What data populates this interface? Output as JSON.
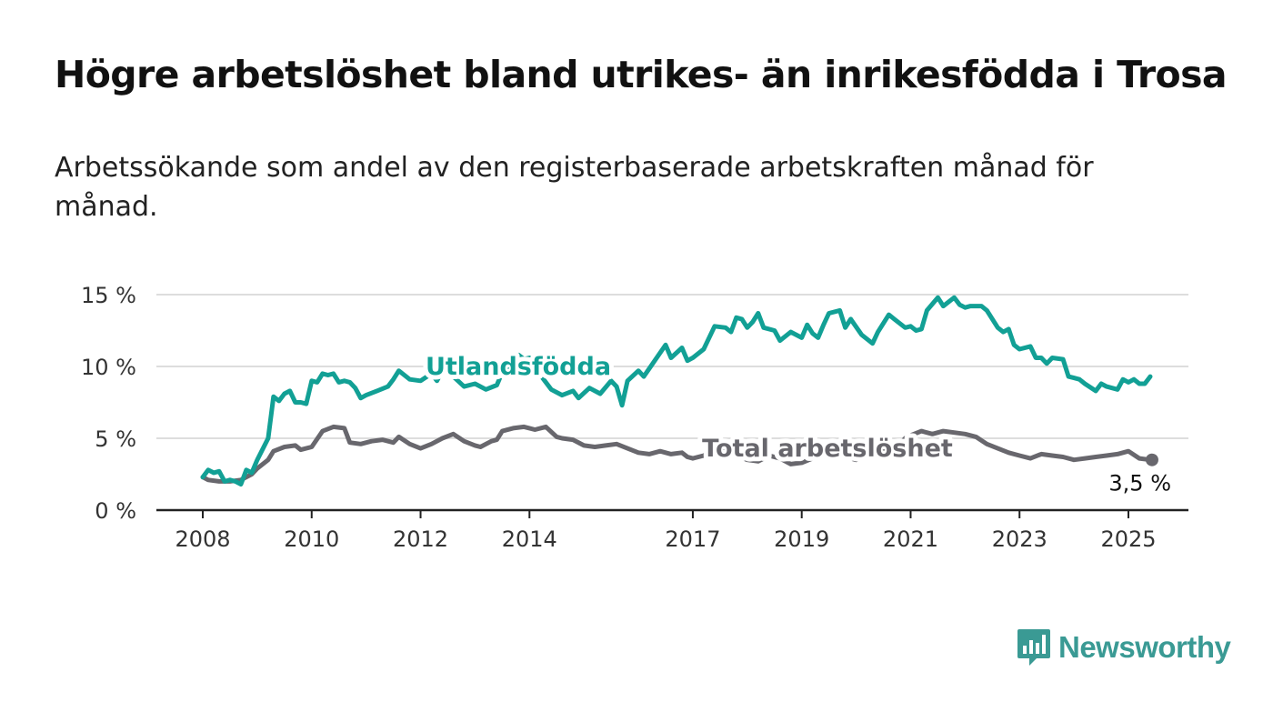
{
  "colors": {
    "foreign": "#12a095",
    "total": "#68676d",
    "grid": "#dddddd",
    "axis": "#222222",
    "brand": "#3a9a94"
  },
  "brand": {
    "name": "Newsworthy",
    "icon": "bar-chart-speech-bubble-icon"
  },
  "chart_data": {
    "type": "line",
    "title": "Högre arbetslöshet bland utrikes- än inrikesfödda i Trosa",
    "subtitle": "Arbetssökande som andel av den registerbaserade arbetskraften månad för månad.",
    "xlabel": "",
    "ylabel": "",
    "xlim": [
      2008,
      2025.4
    ],
    "ylim": [
      0,
      15
    ],
    "grid": true,
    "x_ticks": [
      2008,
      2010,
      2012,
      2014,
      2017,
      2019,
      2021,
      2023,
      2025
    ],
    "x_tick_labels": [
      "2008",
      "2010",
      "2012",
      "2014",
      "2017",
      "2019",
      "2021",
      "2023",
      "2025"
    ],
    "y_ticks": [
      0,
      5,
      10,
      15
    ],
    "y_tick_labels": [
      "0 %",
      "5 %",
      "10 %",
      "15 %"
    ],
    "series": [
      {
        "name": "Utlandsfödda",
        "key": "foreign",
        "points": [
          [
            2008.0,
            2.3
          ],
          [
            2008.1,
            2.8
          ],
          [
            2008.2,
            2.6
          ],
          [
            2008.3,
            2.7
          ],
          [
            2008.4,
            2.0
          ],
          [
            2008.5,
            2.1
          ],
          [
            2008.6,
            2.0
          ],
          [
            2008.7,
            1.8
          ],
          [
            2008.8,
            2.8
          ],
          [
            2008.9,
            2.6
          ],
          [
            2009.0,
            3.5
          ],
          [
            2009.2,
            5.0
          ],
          [
            2009.3,
            7.9
          ],
          [
            2009.4,
            7.6
          ],
          [
            2009.5,
            8.1
          ],
          [
            2009.6,
            8.3
          ],
          [
            2009.7,
            7.5
          ],
          [
            2009.8,
            7.5
          ],
          [
            2009.9,
            7.4
          ],
          [
            2010.0,
            9.0
          ],
          [
            2010.1,
            8.9
          ],
          [
            2010.2,
            9.5
          ],
          [
            2010.3,
            9.4
          ],
          [
            2010.4,
            9.5
          ],
          [
            2010.5,
            8.9
          ],
          [
            2010.6,
            9.0
          ],
          [
            2010.7,
            8.9
          ],
          [
            2010.8,
            8.5
          ],
          [
            2010.9,
            7.8
          ],
          [
            2011.0,
            8.0
          ],
          [
            2011.2,
            8.3
          ],
          [
            2011.4,
            8.6
          ],
          [
            2011.5,
            9.1
          ],
          [
            2011.6,
            9.7
          ],
          [
            2011.8,
            9.1
          ],
          [
            2012.0,
            9.0
          ],
          [
            2012.2,
            9.5
          ],
          [
            2012.3,
            9.0
          ],
          [
            2012.4,
            9.7
          ],
          [
            2012.6,
            9.3
          ],
          [
            2012.8,
            8.6
          ],
          [
            2013.0,
            8.8
          ],
          [
            2013.2,
            8.4
          ],
          [
            2013.4,
            8.7
          ],
          [
            2013.5,
            9.6
          ],
          [
            2013.6,
            9.5
          ],
          [
            2013.7,
            10.3
          ],
          [
            2013.8,
            10.8
          ],
          [
            2013.9,
            10.5
          ],
          [
            2014.0,
            10.6
          ],
          [
            2014.2,
            9.4
          ],
          [
            2014.4,
            8.4
          ],
          [
            2014.6,
            8.0
          ],
          [
            2014.8,
            8.3
          ],
          [
            2014.9,
            7.8
          ],
          [
            2015.1,
            8.5
          ],
          [
            2015.3,
            8.1
          ],
          [
            2015.5,
            9.0
          ],
          [
            2015.6,
            8.6
          ],
          [
            2015.7,
            7.3
          ],
          [
            2015.8,
            9.0
          ],
          [
            2016.0,
            9.7
          ],
          [
            2016.1,
            9.3
          ],
          [
            2016.3,
            10.4
          ],
          [
            2016.5,
            11.5
          ],
          [
            2016.6,
            10.6
          ],
          [
            2016.8,
            11.3
          ],
          [
            2016.9,
            10.4
          ],
          [
            2017.0,
            10.6
          ],
          [
            2017.2,
            11.2
          ],
          [
            2017.4,
            12.8
          ],
          [
            2017.6,
            12.7
          ],
          [
            2017.7,
            12.4
          ],
          [
            2017.8,
            13.4
          ],
          [
            2017.9,
            13.3
          ],
          [
            2018.0,
            12.7
          ],
          [
            2018.1,
            13.1
          ],
          [
            2018.2,
            13.7
          ],
          [
            2018.3,
            12.7
          ],
          [
            2018.5,
            12.5
          ],
          [
            2018.6,
            11.8
          ],
          [
            2018.8,
            12.4
          ],
          [
            2019.0,
            12.0
          ],
          [
            2019.1,
            12.9
          ],
          [
            2019.2,
            12.3
          ],
          [
            2019.3,
            12.0
          ],
          [
            2019.4,
            12.9
          ],
          [
            2019.5,
            13.7
          ],
          [
            2019.7,
            13.9
          ],
          [
            2019.8,
            12.7
          ],
          [
            2019.9,
            13.3
          ],
          [
            2020.1,
            12.2
          ],
          [
            2020.3,
            11.6
          ],
          [
            2020.4,
            12.4
          ],
          [
            2020.6,
            13.6
          ],
          [
            2020.7,
            13.3
          ],
          [
            2020.9,
            12.7
          ],
          [
            2021.0,
            12.8
          ],
          [
            2021.1,
            12.5
          ],
          [
            2021.2,
            12.6
          ],
          [
            2021.3,
            13.9
          ],
          [
            2021.5,
            14.8
          ],
          [
            2021.6,
            14.2
          ],
          [
            2021.8,
            14.8
          ],
          [
            2021.9,
            14.3
          ],
          [
            2022.0,
            14.1
          ],
          [
            2022.1,
            14.2
          ],
          [
            2022.3,
            14.2
          ],
          [
            2022.4,
            13.9
          ],
          [
            2022.6,
            12.7
          ],
          [
            2022.7,
            12.4
          ],
          [
            2022.8,
            12.6
          ],
          [
            2022.9,
            11.5
          ],
          [
            2023.0,
            11.2
          ],
          [
            2023.2,
            11.4
          ],
          [
            2023.3,
            10.6
          ],
          [
            2023.4,
            10.6
          ],
          [
            2023.5,
            10.2
          ],
          [
            2023.6,
            10.6
          ],
          [
            2023.8,
            10.5
          ],
          [
            2023.9,
            9.3
          ],
          [
            2024.0,
            9.2
          ],
          [
            2024.1,
            9.1
          ],
          [
            2024.2,
            8.8
          ],
          [
            2024.4,
            8.3
          ],
          [
            2024.5,
            8.8
          ],
          [
            2024.6,
            8.6
          ],
          [
            2024.8,
            8.4
          ],
          [
            2024.9,
            9.1
          ],
          [
            2025.0,
            8.9
          ],
          [
            2025.1,
            9.1
          ],
          [
            2025.2,
            8.8
          ],
          [
            2025.3,
            8.8
          ],
          [
            2025.4,
            9.3
          ]
        ]
      },
      {
        "name": "Total arbetslöshet",
        "key": "total",
        "points": [
          [
            2008.0,
            2.3
          ],
          [
            2008.1,
            2.1
          ],
          [
            2008.3,
            2.0
          ],
          [
            2008.5,
            2.0
          ],
          [
            2008.7,
            2.1
          ],
          [
            2008.9,
            2.5
          ],
          [
            2009.0,
            2.9
          ],
          [
            2009.2,
            3.5
          ],
          [
            2009.3,
            4.1
          ],
          [
            2009.5,
            4.4
          ],
          [
            2009.7,
            4.5
          ],
          [
            2009.8,
            4.2
          ],
          [
            2010.0,
            4.4
          ],
          [
            2010.2,
            5.5
          ],
          [
            2010.4,
            5.8
          ],
          [
            2010.6,
            5.7
          ],
          [
            2010.7,
            4.7
          ],
          [
            2010.9,
            4.6
          ],
          [
            2011.1,
            4.8
          ],
          [
            2011.3,
            4.9
          ],
          [
            2011.5,
            4.7
          ],
          [
            2011.6,
            5.1
          ],
          [
            2011.8,
            4.6
          ],
          [
            2012.0,
            4.3
          ],
          [
            2012.2,
            4.6
          ],
          [
            2012.4,
            5.0
          ],
          [
            2012.6,
            5.3
          ],
          [
            2012.8,
            4.8
          ],
          [
            2013.0,
            4.5
          ],
          [
            2013.1,
            4.4
          ],
          [
            2013.3,
            4.8
          ],
          [
            2013.4,
            4.9
          ],
          [
            2013.5,
            5.5
          ],
          [
            2013.7,
            5.7
          ],
          [
            2013.9,
            5.8
          ],
          [
            2014.1,
            5.6
          ],
          [
            2014.3,
            5.8
          ],
          [
            2014.5,
            5.1
          ],
          [
            2014.6,
            5.0
          ],
          [
            2014.8,
            4.9
          ],
          [
            2015.0,
            4.5
          ],
          [
            2015.2,
            4.4
          ],
          [
            2015.4,
            4.5
          ],
          [
            2015.6,
            4.6
          ],
          [
            2015.8,
            4.3
          ],
          [
            2016.0,
            4.0
          ],
          [
            2016.2,
            3.9
          ],
          [
            2016.4,
            4.1
          ],
          [
            2016.6,
            3.9
          ],
          [
            2016.8,
            4.0
          ],
          [
            2016.9,
            3.7
          ],
          [
            2017.0,
            3.6
          ],
          [
            2017.2,
            3.8
          ],
          [
            2017.4,
            4.2
          ],
          [
            2017.6,
            4.4
          ],
          [
            2017.8,
            3.8
          ],
          [
            2018.0,
            3.5
          ],
          [
            2018.2,
            3.4
          ],
          [
            2018.4,
            3.8
          ],
          [
            2018.6,
            3.6
          ],
          [
            2018.8,
            3.2
          ],
          [
            2019.0,
            3.3
          ],
          [
            2019.2,
            3.6
          ],
          [
            2019.4,
            3.8
          ],
          [
            2019.6,
            4.0
          ],
          [
            2019.8,
            3.7
          ],
          [
            2020.0,
            3.5
          ],
          [
            2020.2,
            3.8
          ],
          [
            2020.4,
            4.1
          ],
          [
            2020.6,
            4.3
          ],
          [
            2020.8,
            4.6
          ],
          [
            2020.9,
            5.0
          ],
          [
            2021.0,
            5.2
          ],
          [
            2021.2,
            5.5
          ],
          [
            2021.4,
            5.3
          ],
          [
            2021.6,
            5.5
          ],
          [
            2021.8,
            5.4
          ],
          [
            2022.0,
            5.3
          ],
          [
            2022.2,
            5.1
          ],
          [
            2022.4,
            4.6
          ],
          [
            2022.6,
            4.3
          ],
          [
            2022.8,
            4.0
          ],
          [
            2023.0,
            3.8
          ],
          [
            2023.2,
            3.6
          ],
          [
            2023.4,
            3.9
          ],
          [
            2023.6,
            3.8
          ],
          [
            2023.8,
            3.7
          ],
          [
            2024.0,
            3.5
          ],
          [
            2024.2,
            3.6
          ],
          [
            2024.4,
            3.7
          ],
          [
            2024.6,
            3.8
          ],
          [
            2024.8,
            3.9
          ],
          [
            2025.0,
            4.1
          ],
          [
            2025.2,
            3.6
          ],
          [
            2025.4,
            3.5
          ]
        ]
      }
    ],
    "end_value_label": "3,5 %",
    "series_labels": [
      "Utlandsfödda",
      "Total arbetslöshet"
    ]
  }
}
